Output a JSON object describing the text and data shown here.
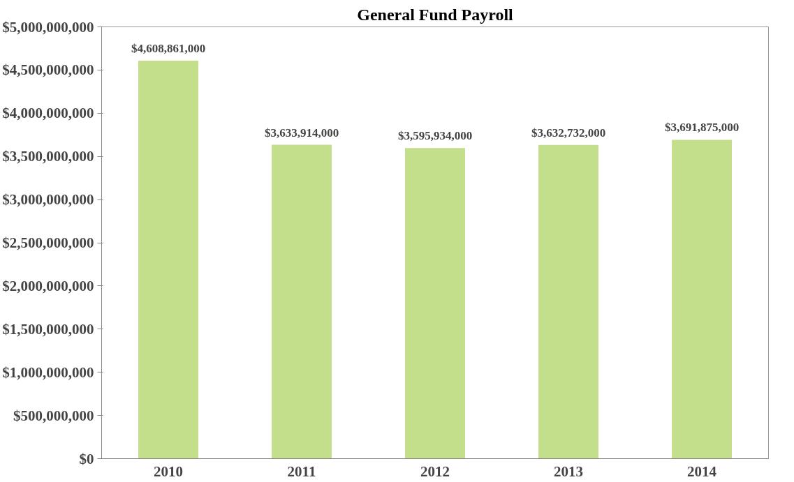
{
  "chart_data": {
    "type": "bar",
    "title": "General Fund Payroll",
    "categories": [
      "2010",
      "2011",
      "2012",
      "2013",
      "2014"
    ],
    "values": [
      4608861000,
      3633914000,
      3595934000,
      3632732000,
      3691875000
    ],
    "color": "#c4df8c",
    "value_labels": [
      "$4,608,861,000",
      "$3,633,914,000",
      "$3,595,934,000",
      "$3,632,732,000",
      "$3,691,875,000"
    ],
    "ylim": [
      0,
      5000000000
    ],
    "yticks": [
      {
        "value": 0,
        "label": "$0"
      },
      {
        "value": 500000000,
        "label": "$500,000,000"
      },
      {
        "value": 1000000000,
        "label": "$1,000,000,000"
      },
      {
        "value": 1500000000,
        "label": "$1,500,000,000"
      },
      {
        "value": 2000000000,
        "label": "$2,000,000,000"
      },
      {
        "value": 2500000000,
        "label": "$2,500,000,000"
      },
      {
        "value": 3000000000,
        "label": "$3,000,000,000"
      },
      {
        "value": 3500000000,
        "label": "$3,500,000,000"
      },
      {
        "value": 4000000000,
        "label": "$4,000,000,000"
      },
      {
        "value": 4500000000,
        "label": "$4,500,000,000"
      },
      {
        "value": 5000000000,
        "label": "$5,000,000,000"
      }
    ],
    "grid": false
  }
}
